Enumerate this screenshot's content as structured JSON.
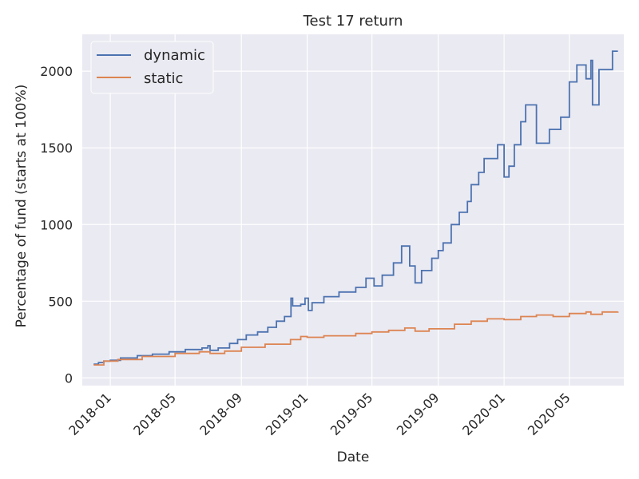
{
  "chart_data": {
    "type": "line",
    "title": "Test 17 return",
    "xlabel": "Date",
    "ylabel": "Percentage of fund (starts at 100%)",
    "xlim": [
      "2017-11-10",
      "2020-08-10"
    ],
    "ylim": [
      -50,
      2240
    ],
    "x_ticks": [
      "2018-01",
      "2018-05",
      "2018-09",
      "2019-01",
      "2019-05",
      "2019-09",
      "2020-01",
      "2020-05"
    ],
    "y_ticks": [
      0,
      500,
      1000,
      1500,
      2000
    ],
    "grid": true,
    "legend_position": "top-left",
    "series": [
      {
        "name": "dynamic",
        "color": "#4c72b0",
        "points": [
          [
            "2017-12-01",
            90
          ],
          [
            "2017-12-10",
            100
          ],
          [
            "2017-12-20",
            110
          ],
          [
            "2018-01-01",
            115
          ],
          [
            "2018-01-20",
            130
          ],
          [
            "2018-02-20",
            145
          ],
          [
            "2018-03-20",
            155
          ],
          [
            "2018-04-20",
            170
          ],
          [
            "2018-05-20",
            185
          ],
          [
            "2018-06-20",
            195
          ],
          [
            "2018-07-01",
            210
          ],
          [
            "2018-07-05",
            180
          ],
          [
            "2018-07-20",
            195
          ],
          [
            "2018-08-10",
            225
          ],
          [
            "2018-08-25",
            250
          ],
          [
            "2018-09-10",
            280
          ],
          [
            "2018-10-01",
            300
          ],
          [
            "2018-10-20",
            330
          ],
          [
            "2018-11-05",
            370
          ],
          [
            "2018-11-20",
            400
          ],
          [
            "2018-12-02",
            520
          ],
          [
            "2018-12-05",
            470
          ],
          [
            "2018-12-20",
            480
          ],
          [
            "2018-12-28",
            520
          ],
          [
            "2019-01-03",
            440
          ],
          [
            "2019-01-10",
            490
          ],
          [
            "2019-02-01",
            530
          ],
          [
            "2019-03-01",
            560
          ],
          [
            "2019-04-01",
            590
          ],
          [
            "2019-04-20",
            650
          ],
          [
            "2019-05-05",
            600
          ],
          [
            "2019-05-20",
            670
          ],
          [
            "2019-06-10",
            750
          ],
          [
            "2019-06-25",
            860
          ],
          [
            "2019-07-10",
            730
          ],
          [
            "2019-07-20",
            620
          ],
          [
            "2019-08-01",
            700
          ],
          [
            "2019-08-20",
            780
          ],
          [
            "2019-09-01",
            830
          ],
          [
            "2019-09-10",
            880
          ],
          [
            "2019-09-25",
            1000
          ],
          [
            "2019-10-10",
            1080
          ],
          [
            "2019-10-25",
            1150
          ],
          [
            "2019-11-01",
            1260
          ],
          [
            "2019-11-15",
            1340
          ],
          [
            "2019-11-25",
            1430
          ],
          [
            "2019-12-20",
            1520
          ],
          [
            "2020-01-01",
            1310
          ],
          [
            "2020-01-10",
            1380
          ],
          [
            "2020-01-20",
            1520
          ],
          [
            "2020-02-01",
            1670
          ],
          [
            "2020-02-10",
            1780
          ],
          [
            "2020-03-01",
            1530
          ],
          [
            "2020-03-25",
            1620
          ],
          [
            "2020-04-15",
            1700
          ],
          [
            "2020-05-01",
            1930
          ],
          [
            "2020-05-15",
            2040
          ],
          [
            "2020-06-01",
            1950
          ],
          [
            "2020-06-10",
            2070
          ],
          [
            "2020-06-13",
            1780
          ],
          [
            "2020-06-25",
            2010
          ],
          [
            "2020-07-20",
            2130
          ],
          [
            "2020-07-30",
            2130
          ]
        ]
      },
      {
        "name": "static",
        "color": "#dd8452",
        "points": [
          [
            "2017-12-01",
            85
          ],
          [
            "2017-12-20",
            110
          ],
          [
            "2018-01-15",
            120
          ],
          [
            "2018-03-01",
            140
          ],
          [
            "2018-05-01",
            160
          ],
          [
            "2018-06-15",
            170
          ],
          [
            "2018-07-05",
            160
          ],
          [
            "2018-08-01",
            175
          ],
          [
            "2018-09-01",
            200
          ],
          [
            "2018-10-15",
            220
          ],
          [
            "2018-12-01",
            250
          ],
          [
            "2018-12-20",
            270
          ],
          [
            "2019-01-01",
            265
          ],
          [
            "2019-02-01",
            275
          ],
          [
            "2019-04-01",
            290
          ],
          [
            "2019-05-01",
            300
          ],
          [
            "2019-06-01",
            310
          ],
          [
            "2019-07-01",
            325
          ],
          [
            "2019-07-20",
            305
          ],
          [
            "2019-08-15",
            320
          ],
          [
            "2019-10-01",
            350
          ],
          [
            "2019-11-01",
            370
          ],
          [
            "2019-12-01",
            385
          ],
          [
            "2020-01-01",
            380
          ],
          [
            "2020-02-01",
            400
          ],
          [
            "2020-03-01",
            410
          ],
          [
            "2020-04-01",
            400
          ],
          [
            "2020-05-01",
            420
          ],
          [
            "2020-06-01",
            430
          ],
          [
            "2020-06-10",
            415
          ],
          [
            "2020-07-01",
            430
          ],
          [
            "2020-07-30",
            432
          ]
        ]
      }
    ]
  }
}
